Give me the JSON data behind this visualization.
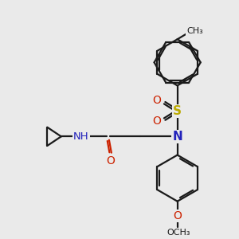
{
  "bg_color": "#eaeaea",
  "bond_color": "#1a1a1a",
  "n_color": "#2222bb",
  "o_color": "#cc2200",
  "s_color": "#bbaa00",
  "lw": 1.6,
  "dbgap": 0.08,
  "figsize": [
    3.0,
    3.0
  ],
  "dpi": 100,
  "xlim": [
    0,
    10
  ],
  "ylim": [
    0,
    10
  ]
}
